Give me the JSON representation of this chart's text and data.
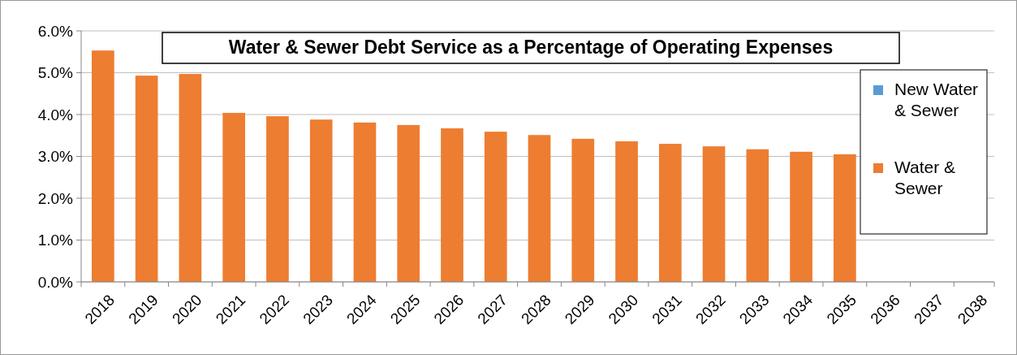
{
  "chart_data": {
    "type": "bar",
    "title": "Water & Sewer Debt Service as a Percentage of Operating Expenses",
    "categories": [
      "2018",
      "2019",
      "2020",
      "2021",
      "2022",
      "2023",
      "2024",
      "2025",
      "2026",
      "2027",
      "2028",
      "2029",
      "2030",
      "2031",
      "2032",
      "2033",
      "2034",
      "2035",
      "2036",
      "2037",
      "2038"
    ],
    "series": [
      {
        "name": "Water & Sewer",
        "color": "#ed7d31",
        "values": [
          5.53,
          4.93,
          4.97,
          4.04,
          3.96,
          3.88,
          3.81,
          3.75,
          3.67,
          3.59,
          3.51,
          3.42,
          3.36,
          3.3,
          3.24,
          3.17,
          3.11,
          3.05,
          null,
          null,
          null
        ]
      },
      {
        "name": "New Water & Sewer",
        "color": "#5b9bd5",
        "values": [
          null,
          null,
          null,
          null,
          null,
          null,
          null,
          null,
          null,
          null,
          null,
          null,
          null,
          null,
          null,
          null,
          null,
          null,
          null,
          null,
          null
        ]
      }
    ],
    "stacked": true,
    "ylim": [
      0,
      6
    ],
    "yticks": [
      {
        "value": 0,
        "label": "0.0%"
      },
      {
        "value": 1,
        "label": "1.0%"
      },
      {
        "value": 2,
        "label": "2.0%"
      },
      {
        "value": 3,
        "label": "3.0%"
      },
      {
        "value": 4,
        "label": "4.0%"
      },
      {
        "value": 5,
        "label": "5.0%"
      },
      {
        "value": 6,
        "label": "6.0%"
      }
    ],
    "grid": "y",
    "legend": "right"
  }
}
